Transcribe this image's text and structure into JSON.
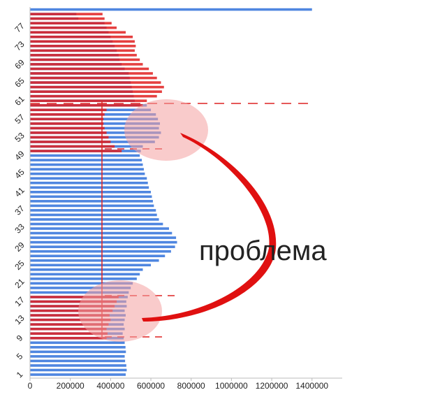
{
  "chart_data": {
    "type": "hbar",
    "categories": [
      "1",
      null,
      null,
      null,
      "5",
      null,
      null,
      null,
      "9",
      null,
      null,
      null,
      "13",
      null,
      null,
      null,
      "17",
      null,
      null,
      null,
      "21",
      null,
      null,
      null,
      "25",
      null,
      null,
      null,
      "29",
      null,
      null,
      null,
      "33",
      null,
      null,
      null,
      "37",
      null,
      null,
      null,
      "41",
      null,
      null,
      null,
      "45",
      null,
      null,
      null,
      "49",
      null,
      null,
      null,
      "53",
      null,
      null,
      null,
      "57",
      null,
      null,
      null,
      "61",
      null,
      null,
      null,
      "65",
      null,
      null,
      null,
      "69",
      null,
      null,
      null,
      "73",
      null,
      null,
      null,
      "77",
      null,
      null,
      null,
      null
    ],
    "series": [
      {
        "color": "#4f86e0",
        "values": [
          475000,
          480000,
          478000,
          472000,
          470000,
          476000,
          474000,
          470000,
          465000,
          460000,
          470000,
          465000,
          470000,
          475000,
          470000,
          480000,
          478000,
          485000,
          490000,
          500000,
          510000,
          530000,
          545000,
          560000,
          600000,
          640000,
          670000,
          700000,
          720000,
          730000,
          725000,
          705000,
          690000,
          660000,
          640000,
          630000,
          625000,
          615000,
          610000,
          605000,
          600000,
          590000,
          585000,
          580000,
          570000,
          565000,
          560000,
          555000,
          545000,
          550000,
          560000,
          620000,
          640000,
          650000,
          640000,
          645000,
          635000,
          625000,
          600000,
          580000,
          520000,
          515000,
          510000,
          505000,
          500000,
          495000,
          490000,
          470000,
          455000,
          445000,
          440000,
          430000,
          420000,
          410000,
          400000,
          390000,
          380000,
          370000,
          240000,
          230000,
          1400000
        ]
      },
      {
        "color": "#e01e1e",
        "values": [
          null,
          null,
          null,
          null,
          null,
          null,
          null,
          null,
          380000,
          385000,
          380000,
          390000,
          400000,
          395000,
          410000,
          420000,
          430000,
          440000,
          null,
          null,
          null,
          null,
          null,
          null,
          null,
          null,
          null,
          null,
          null,
          null,
          null,
          null,
          null,
          null,
          null,
          null,
          null,
          null,
          null,
          null,
          null,
          null,
          null,
          null,
          null,
          null,
          null,
          null,
          null,
          455000,
          420000,
          400000,
          390000,
          380000,
          370000,
          365000,
          365000,
          370000,
          380000,
          560000,
          580000,
          630000,
          655000,
          665000,
          650000,
          630000,
          610000,
          590000,
          560000,
          545000,
          530000,
          520000,
          525000,
          520000,
          510000,
          475000,
          430000,
          405000,
          370000,
          360000,
          null
        ]
      }
    ],
    "xlim": [
      0,
      1550000
    ],
    "xticks": [
      0,
      200000,
      400000,
      600000,
      800000,
      1000000,
      1200000,
      1400000
    ],
    "grid": false,
    "annotations": [
      "проблема"
    ]
  }
}
